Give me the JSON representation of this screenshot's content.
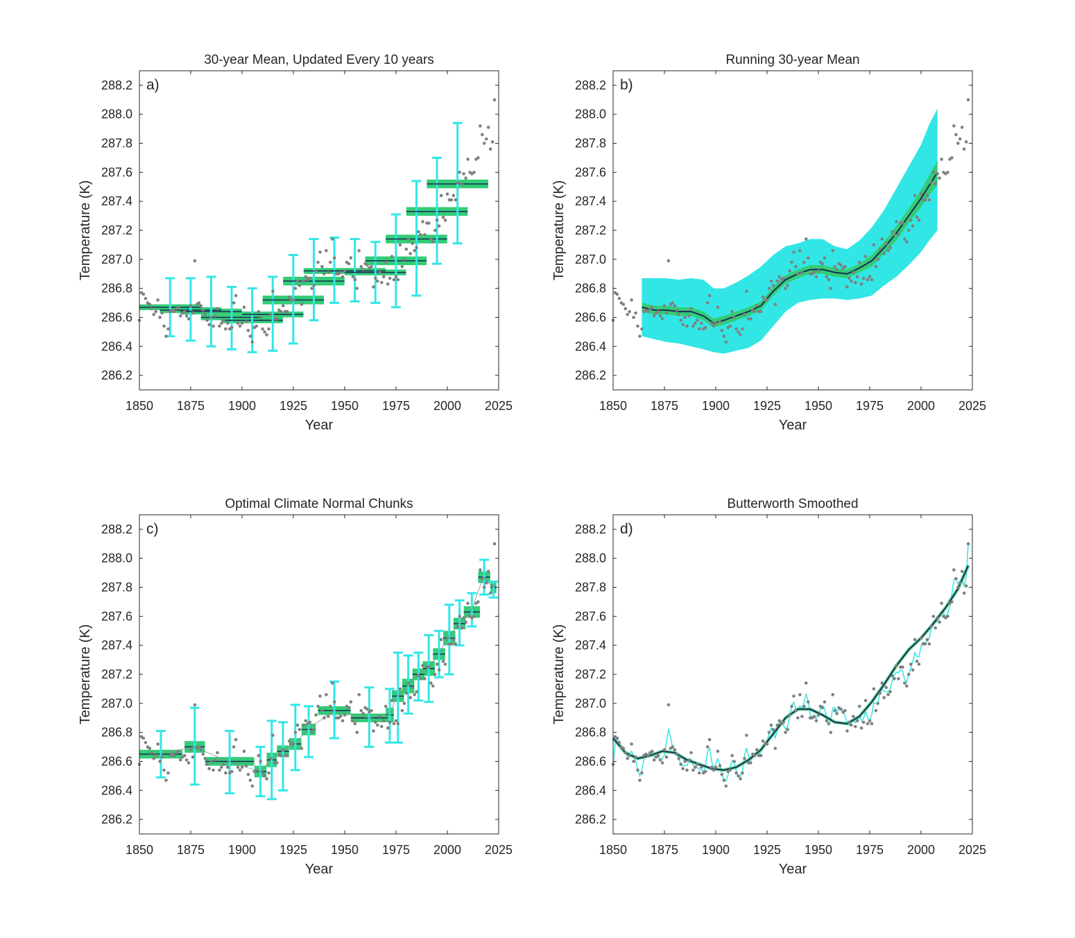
{
  "figure": {
    "background": "#ffffff",
    "colors": {
      "dots": "#808080",
      "uncertainty": "#33e6e6",
      "mean_band": "#33cc77",
      "mean_line": "#1a2a55",
      "axes": "#262626"
    }
  },
  "chart_data": [
    {
      "type": "scatter",
      "panel_id": "a",
      "panel_letter": "a)",
      "title": "30-year Mean, Updated Every 10 years",
      "xlabel": "Year",
      "ylabel": "Temperature (K)",
      "xlim": [
        1850,
        2025
      ],
      "ylim": [
        286.1,
        288.3
      ],
      "xticks": [
        1850,
        1875,
        1900,
        1925,
        1950,
        1975,
        2000,
        2025
      ],
      "yticks": [
        286.2,
        286.4,
        286.6,
        286.8,
        287.0,
        287.2,
        287.4,
        287.6,
        287.8,
        288.0,
        288.2
      ],
      "grid": false,
      "overlay": "stepped_means",
      "segments": [
        {
          "start": 1850,
          "end": 1879,
          "mean": 286.67,
          "band": 0.02,
          "ci": [
            286.47,
            286.87
          ]
        },
        {
          "start": 1860,
          "end": 1889,
          "mean": 286.65,
          "band": 0.02,
          "ci": [
            286.44,
            286.87
          ]
        },
        {
          "start": 1870,
          "end": 1899,
          "mean": 286.64,
          "band": 0.02,
          "ci": [
            286.4,
            286.88
          ]
        },
        {
          "start": 1880,
          "end": 1909,
          "mean": 286.6,
          "band": 0.02,
          "ci": [
            286.38,
            286.81
          ]
        },
        {
          "start": 1890,
          "end": 1919,
          "mean": 286.58,
          "band": 0.02,
          "ci": [
            286.36,
            286.8
          ]
        },
        {
          "start": 1900,
          "end": 1929,
          "mean": 286.62,
          "band": 0.02,
          "ci": [
            286.37,
            286.88
          ]
        },
        {
          "start": 1910,
          "end": 1939,
          "mean": 286.72,
          "band": 0.03,
          "ci": [
            286.42,
            287.03
          ]
        },
        {
          "start": 1920,
          "end": 1949,
          "mean": 286.85,
          "band": 0.03,
          "ci": [
            286.58,
            287.14
          ]
        },
        {
          "start": 1930,
          "end": 1959,
          "mean": 286.92,
          "band": 0.02,
          "ci": [
            286.7,
            287.15
          ]
        },
        {
          "start": 1940,
          "end": 1969,
          "mean": 286.92,
          "band": 0.02,
          "ci": [
            286.71,
            287.14
          ]
        },
        {
          "start": 1950,
          "end": 1979,
          "mean": 286.91,
          "band": 0.02,
          "ci": [
            286.7,
            287.12
          ]
        },
        {
          "start": 1960,
          "end": 1989,
          "mean": 286.99,
          "band": 0.03,
          "ci": [
            286.67,
            287.31
          ]
        },
        {
          "start": 1970,
          "end": 1999,
          "mean": 287.14,
          "band": 0.03,
          "ci": [
            286.75,
            287.54
          ]
        },
        {
          "start": 1980,
          "end": 2009,
          "mean": 287.33,
          "band": 0.03,
          "ci": [
            286.97,
            287.7
          ]
        },
        {
          "start": 1990,
          "end": 2019,
          "mean": 287.52,
          "band": 0.03,
          "ci": [
            287.11,
            287.94
          ]
        }
      ]
    },
    {
      "type": "scatter",
      "panel_id": "b",
      "panel_letter": "b)",
      "title": "Running 30-year Mean",
      "xlabel": "Year",
      "ylabel": "Temperature (K)",
      "xlim": [
        1850,
        2025
      ],
      "ylim": [
        286.1,
        288.3
      ],
      "xticks": [
        1850,
        1875,
        1900,
        1925,
        1950,
        1975,
        2000,
        2025
      ],
      "yticks": [
        286.2,
        286.4,
        286.6,
        286.8,
        287.0,
        287.2,
        287.4,
        287.6,
        287.8,
        288.0,
        288.2
      ],
      "grid": false,
      "overlay": "running_mean",
      "running_mean": {
        "x": [
          1864,
          1870,
          1876,
          1882,
          1888,
          1894,
          1899,
          1904,
          1910,
          1916,
          1922,
          1928,
          1934,
          1940,
          1946,
          1952,
          1958,
          1964,
          1970,
          1976,
          1982,
          1988,
          1994,
          2000,
          2004,
          2008
        ],
        "mean": [
          286.67,
          286.65,
          286.65,
          286.64,
          286.64,
          286.61,
          286.56,
          286.58,
          286.61,
          286.64,
          286.68,
          286.78,
          286.86,
          286.9,
          286.93,
          286.93,
          286.91,
          286.9,
          286.94,
          286.99,
          287.08,
          287.18,
          287.3,
          287.42,
          287.51,
          287.6
        ],
        "band": [
          0.03,
          0.03,
          0.03,
          0.03,
          0.03,
          0.03,
          0.03,
          0.03,
          0.03,
          0.03,
          0.03,
          0.03,
          0.03,
          0.03,
          0.03,
          0.03,
          0.03,
          0.03,
          0.03,
          0.04,
          0.04,
          0.05,
          0.05,
          0.06,
          0.07,
          0.08
        ],
        "ci_low": [
          286.47,
          286.45,
          286.43,
          286.42,
          286.4,
          286.38,
          286.36,
          286.35,
          286.37,
          286.39,
          286.44,
          286.54,
          286.64,
          286.7,
          286.72,
          286.73,
          286.73,
          286.72,
          286.73,
          286.75,
          286.82,
          286.88,
          286.96,
          287.05,
          287.13,
          287.2
        ],
        "ci_high": [
          286.87,
          286.87,
          286.87,
          286.86,
          286.87,
          286.86,
          286.8,
          286.8,
          286.84,
          286.89,
          286.95,
          287.03,
          287.09,
          287.11,
          287.14,
          287.14,
          287.09,
          287.07,
          287.13,
          287.22,
          287.34,
          287.49,
          287.64,
          287.79,
          287.93,
          288.04
        ]
      }
    },
    {
      "type": "scatter",
      "panel_id": "c",
      "panel_letter": "c)",
      "title": "Optimal Climate Normal Chunks",
      "xlabel": "Year",
      "ylabel": "Temperature (K)",
      "xlim": [
        1850,
        2025
      ],
      "ylim": [
        286.1,
        288.3
      ],
      "xticks": [
        1850,
        1875,
        1900,
        1925,
        1950,
        1975,
        2000,
        2025
      ],
      "yticks": [
        286.2,
        286.4,
        286.6,
        286.8,
        287.0,
        287.2,
        287.4,
        287.6,
        287.8,
        288.0,
        288.2
      ],
      "grid": false,
      "overlay": "chunks",
      "segments": [
        {
          "start": 1850,
          "end": 1870,
          "mean": 286.65,
          "band": 0.03,
          "ci": [
            286.49,
            286.81
          ]
        },
        {
          "start": 1872,
          "end": 1881,
          "mean": 286.7,
          "band": 0.04,
          "ci": [
            286.44,
            286.97
          ]
        },
        {
          "start": 1882,
          "end": 1905,
          "mean": 286.6,
          "band": 0.03,
          "ci": [
            286.38,
            286.81
          ]
        },
        {
          "start": 1906,
          "end": 1911,
          "mean": 286.53,
          "band": 0.04,
          "ci": [
            286.36,
            286.7
          ]
        },
        {
          "start": 1912,
          "end": 1916,
          "mean": 286.61,
          "band": 0.05,
          "ci": [
            286.34,
            286.88
          ]
        },
        {
          "start": 1917,
          "end": 1922,
          "mean": 286.67,
          "band": 0.04,
          "ci": [
            286.4,
            286.87
          ]
        },
        {
          "start": 1923,
          "end": 1928,
          "mean": 286.72,
          "band": 0.04,
          "ci": [
            286.54,
            286.99
          ]
        },
        {
          "start": 1929,
          "end": 1935,
          "mean": 286.82,
          "band": 0.04,
          "ci": [
            286.63,
            286.98
          ]
        },
        {
          "start": 1937,
          "end": 1952,
          "mean": 286.95,
          "band": 0.03,
          "ci": [
            286.76,
            287.15
          ]
        },
        {
          "start": 1953,
          "end": 1970,
          "mean": 286.9,
          "band": 0.03,
          "ci": [
            286.7,
            287.11
          ]
        },
        {
          "start": 1970,
          "end": 1973,
          "mean": 286.92,
          "band": 0.05,
          "ci": [
            286.73,
            287.1
          ]
        },
        {
          "start": 1973,
          "end": 1978,
          "mean": 287.05,
          "band": 0.04,
          "ci": [
            286.73,
            287.35
          ]
        },
        {
          "start": 1978,
          "end": 1983,
          "mean": 287.12,
          "band": 0.05,
          "ci": [
            286.93,
            287.33
          ]
        },
        {
          "start": 1983,
          "end": 1988,
          "mean": 287.2,
          "band": 0.04,
          "ci": [
            287.02,
            287.35
          ]
        },
        {
          "start": 1988,
          "end": 1993,
          "mean": 287.24,
          "band": 0.05,
          "ci": [
            287.01,
            287.47
          ]
        },
        {
          "start": 1993,
          "end": 1998,
          "mean": 287.34,
          "band": 0.04,
          "ci": [
            287.18,
            287.5
          ]
        },
        {
          "start": 1998,
          "end": 2003,
          "mean": 287.45,
          "band": 0.05,
          "ci": [
            287.2,
            287.68
          ]
        },
        {
          "start": 2003,
          "end": 2008,
          "mean": 287.55,
          "band": 0.04,
          "ci": [
            287.4,
            287.71
          ]
        },
        {
          "start": 2008,
          "end": 2015,
          "mean": 287.63,
          "band": 0.04,
          "ci": [
            287.53,
            287.76
          ]
        },
        {
          "start": 2015,
          "end": 2020,
          "mean": 287.87,
          "band": 0.04,
          "ci": [
            287.75,
            287.99
          ]
        },
        {
          "start": 2021,
          "end": 2023,
          "mean": 287.8,
          "band": 0.04,
          "ci": [
            287.73,
            287.84
          ]
        }
      ]
    },
    {
      "type": "line",
      "panel_id": "d",
      "panel_letter": "d)",
      "title": "Butterworth Smoothed",
      "xlabel": "Year",
      "ylabel": "Temperature (K)",
      "xlim": [
        1850,
        2025
      ],
      "ylim": [
        286.1,
        288.3
      ],
      "xticks": [
        1850,
        1875,
        1900,
        1925,
        1950,
        1975,
        2000,
        2025
      ],
      "yticks": [
        286.2,
        286.4,
        286.6,
        286.8,
        287.0,
        287.2,
        287.4,
        287.6,
        287.8,
        288.0,
        288.2
      ],
      "grid": false,
      "overlay": "smoothed",
      "smooth": {
        "x": [
          1850,
          1856,
          1862,
          1868,
          1874,
          1880,
          1886,
          1892,
          1898,
          1904,
          1910,
          1916,
          1922,
          1928,
          1934,
          1940,
          1946,
          1952,
          1958,
          1964,
          1970,
          1976,
          1982,
          1988,
          1994,
          2000,
          2006,
          2012,
          2018,
          2023
        ],
        "y": [
          286.76,
          286.66,
          286.62,
          286.64,
          286.67,
          286.66,
          286.61,
          286.58,
          286.55,
          286.54,
          286.56,
          286.61,
          286.68,
          286.79,
          286.9,
          286.96,
          286.96,
          286.92,
          286.87,
          286.86,
          286.91,
          287.01,
          287.13,
          287.26,
          287.37,
          287.45,
          287.55,
          287.66,
          287.79,
          287.95
        ]
      }
    }
  ],
  "observations": {
    "x": [
      1850,
      1851,
      1852,
      1853,
      1854,
      1855,
      1856,
      1857,
      1858,
      1859,
      1860,
      1861,
      1862,
      1863,
      1864,
      1865,
      1866,
      1867,
      1868,
      1869,
      1870,
      1871,
      1872,
      1873,
      1874,
      1875,
      1876,
      1877,
      1878,
      1879,
      1880,
      1881,
      1882,
      1883,
      1884,
      1885,
      1886,
      1887,
      1888,
      1889,
      1890,
      1891,
      1892,
      1893,
      1894,
      1895,
      1896,
      1897,
      1898,
      1899,
      1900,
      1901,
      1902,
      1903,
      1904,
      1905,
      1906,
      1907,
      1908,
      1909,
      1910,
      1911,
      1912,
      1913,
      1914,
      1915,
      1916,
      1917,
      1918,
      1919,
      1920,
      1921,
      1922,
      1923,
      1924,
      1925,
      1926,
      1927,
      1928,
      1929,
      1930,
      1931,
      1932,
      1933,
      1934,
      1935,
      1936,
      1937,
      1938,
      1939,
      1940,
      1941,
      1942,
      1943,
      1944,
      1945,
      1946,
      1947,
      1948,
      1949,
      1950,
      1951,
      1952,
      1953,
      1954,
      1955,
      1956,
      1957,
      1958,
      1959,
      1960,
      1961,
      1962,
      1963,
      1964,
      1965,
      1966,
      1967,
      1968,
      1969,
      1970,
      1971,
      1972,
      1973,
      1974,
      1975,
      1976,
      1977,
      1978,
      1979,
      1980,
      1981,
      1982,
      1983,
      1984,
      1985,
      1986,
      1987,
      1988,
      1989,
      1990,
      1991,
      1992,
      1993,
      1994,
      1995,
      1996,
      1997,
      1998,
      1999,
      2000,
      2001,
      2002,
      2003,
      2004,
      2005,
      2006,
      2007,
      2008,
      2009,
      2010,
      2011,
      2012,
      2013,
      2014,
      2015,
      2016,
      2017,
      2018,
      2019,
      2020,
      2021,
      2022,
      2023
    ],
    "y": [
      286.58,
      286.77,
      286.76,
      286.73,
      286.7,
      286.69,
      286.66,
      286.62,
      286.64,
      286.72,
      286.6,
      286.63,
      286.54,
      286.47,
      286.52,
      286.64,
      286.65,
      286.64,
      286.66,
      286.67,
      286.61,
      286.63,
      286.64,
      286.61,
      286.59,
      286.68,
      286.63,
      286.99,
      286.69,
      286.7,
      286.68,
      286.65,
      286.62,
      286.58,
      286.55,
      286.6,
      286.54,
      286.61,
      286.66,
      286.54,
      286.56,
      286.58,
      286.52,
      286.56,
      286.52,
      286.53,
      286.7,
      286.75,
      286.56,
      286.54,
      286.56,
      286.67,
      286.57,
      286.51,
      286.47,
      286.43,
      286.53,
      286.54,
      286.64,
      286.6,
      286.52,
      286.5,
      286.48,
      286.52,
      286.62,
      286.78,
      286.59,
      286.59,
      286.65,
      286.64,
      286.68,
      286.64,
      286.64,
      286.74,
      286.72,
      286.72,
      286.8,
      286.85,
      286.82,
      286.69,
      286.85,
      286.88,
      286.86,
      286.87,
      286.8,
      286.82,
      286.92,
      286.98,
      287.05,
      286.95,
      286.9,
      287.06,
      286.91,
      286.98,
      287.14,
      287.01,
      286.9,
      286.9,
      286.91,
      286.88,
      286.92,
      286.98,
      286.97,
      287.01,
      286.88,
      286.86,
      286.8,
      287.06,
      286.95,
      286.93,
      286.97,
      286.96,
      286.94,
      286.95,
      286.81,
      286.87,
      286.85,
      286.91,
      286.84,
      286.88,
      286.98,
      286.83,
      286.87,
      287.02,
      286.86,
      286.88,
      286.86,
      287.1,
      286.95,
      287.0,
      287.07,
      287.14,
      287.04,
      287.11,
      287.06,
      287.08,
      287.19,
      287.17,
      287.26,
      287.17,
      287.25,
      287.25,
      287.14,
      287.12,
      287.2,
      287.27,
      287.23,
      287.44,
      287.29,
      287.27,
      287.45,
      287.41,
      287.41,
      287.44,
      287.41,
      287.53,
      287.6,
      287.52,
      287.59,
      287.56,
      287.69,
      287.6,
      287.59,
      287.6,
      287.69,
      287.7,
      287.92,
      287.86,
      287.8,
      287.83,
      287.91,
      287.76,
      287.81,
      288.1
    ]
  }
}
